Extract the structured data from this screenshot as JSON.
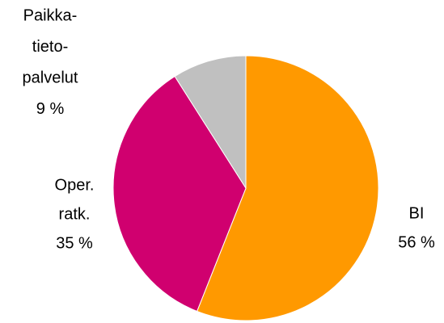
{
  "chart_data": {
    "type": "pie",
    "categories": [
      [
        "BI"
      ],
      [
        "Oper.",
        "ratk."
      ],
      [
        "Paikka-",
        "tieto-",
        "palvelut"
      ]
    ],
    "values": [
      56,
      35,
      9
    ],
    "value_labels": [
      "56 %",
      "35 %",
      "9 %"
    ],
    "colors": [
      "#ff9900",
      "#d0006f",
      "#c0c0c0"
    ]
  }
}
